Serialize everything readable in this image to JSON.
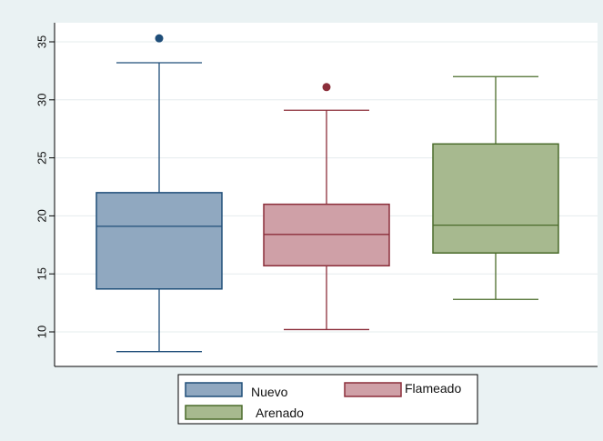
{
  "chart_data": {
    "type": "box",
    "title": "",
    "xlabel": "",
    "ylabel": "",
    "ylim": [
      7,
      36.5
    ],
    "y_ticks": [
      10,
      15,
      20,
      25,
      30,
      35
    ],
    "y_tick_labels": [
      "10",
      "15",
      "20",
      "25",
      "30",
      "35"
    ],
    "grid": true,
    "legend_position": "bottom",
    "series": [
      {
        "name": "Nuevo",
        "min": 8.3,
        "q1": 13.7,
        "median": 19.1,
        "q3": 22.0,
        "max": 33.2,
        "outliers": [
          35.3
        ],
        "fill": "#90a8c0",
        "stroke": "#1f4e79"
      },
      {
        "name": "Flameado",
        "min": 10.2,
        "q1": 15.7,
        "median": 18.4,
        "q3": 21.0,
        "max": 29.1,
        "outliers": [
          31.1
        ],
        "fill": "#cfa0a7",
        "stroke": "#8b2e3a"
      },
      {
        "name": "Arenado",
        "min": 12.8,
        "q1": 16.8,
        "median": 19.2,
        "q3": 26.2,
        "max": 32.0,
        "outliers": [],
        "fill": "#a7b98f",
        "stroke": "#4a6b2a"
      }
    ]
  },
  "colors": {
    "outer_background": "#eaf2f3",
    "plot_background": "#ffffff",
    "grid": "#e6ecee",
    "axis": "#000000"
  }
}
